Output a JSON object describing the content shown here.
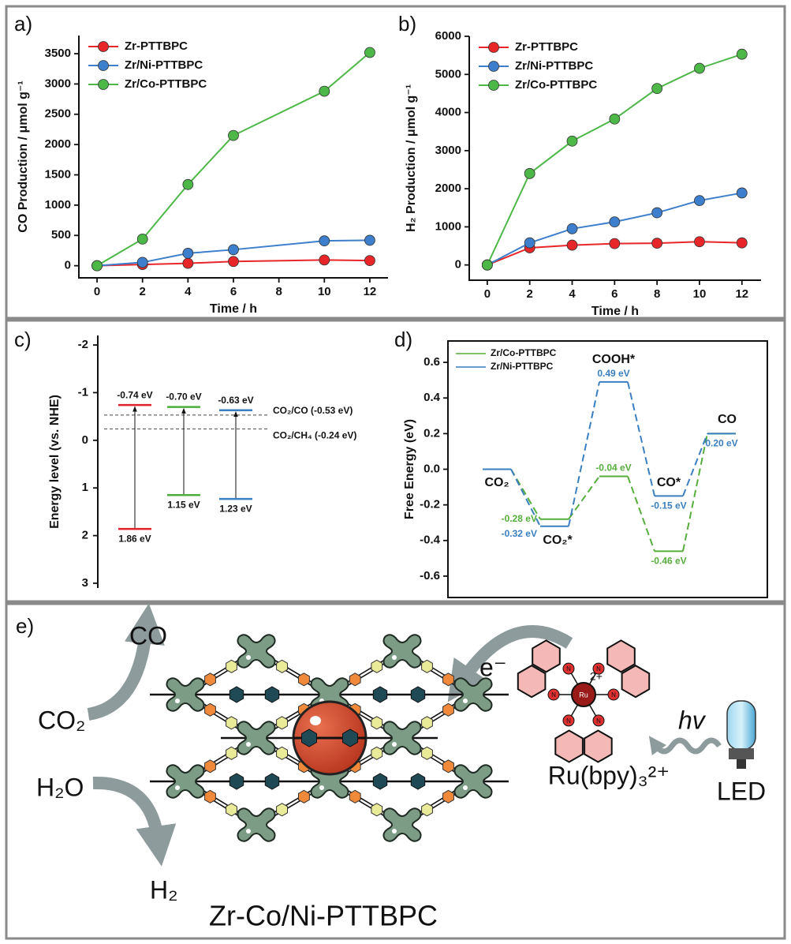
{
  "chart_data": [
    {
      "type": "line",
      "panel_label": "a)",
      "xlabel": "Time / h",
      "ylabel": "CO Production / μmol g⁻¹",
      "x": [
        0,
        2,
        4,
        6,
        10,
        12
      ],
      "xlim": [
        -0.8,
        12.8
      ],
      "xticks": [
        0,
        2,
        4,
        6,
        8,
        10,
        12
      ],
      "ylim": [
        -200,
        3800
      ],
      "yticks": [
        0,
        500,
        1000,
        1500,
        2000,
        2500,
        3000,
        3500
      ],
      "legend": "upper left",
      "series": [
        {
          "name": "Zr-PTTBPC",
          "color": "#e8262a",
          "values": [
            0,
            20,
            40,
            70,
            95,
            85
          ]
        },
        {
          "name": "Zr/Ni-PTTBPC",
          "color": "#3d7fcc",
          "values": [
            0,
            55,
            205,
            265,
            410,
            420
          ]
        },
        {
          "name": "Zr/Co-PTTBPC",
          "color": "#4db848",
          "values": [
            0,
            440,
            1340,
            2150,
            2880,
            3520
          ]
        }
      ]
    },
    {
      "type": "line",
      "panel_label": "b)",
      "xlabel": "Time / h",
      "ylabel": "H₂ Production / μmol g⁻¹",
      "x": [
        0,
        2,
        4,
        6,
        8,
        10,
        12
      ],
      "xlim": [
        -0.85,
        12.9
      ],
      "xticks": [
        0,
        2,
        4,
        6,
        8,
        10,
        12
      ],
      "ylim": [
        -400,
        6000
      ],
      "yticks": [
        0,
        1000,
        2000,
        3000,
        4000,
        5000,
        6000
      ],
      "legend": "upper left",
      "series": [
        {
          "name": "Zr-PTTBPC",
          "color": "#e8262a",
          "values": [
            0,
            450,
            520,
            560,
            570,
            610,
            580
          ]
        },
        {
          "name": "Zr/Ni-PTTBPC",
          "color": "#3d7fcc",
          "values": [
            0,
            580,
            950,
            1130,
            1370,
            1690,
            1890
          ]
        },
        {
          "name": "Zr/Co-PTTBPC",
          "color": "#4db848",
          "values": [
            0,
            2400,
            3250,
            3830,
            4630,
            5160,
            5530
          ]
        }
      ]
    },
    {
      "type": "energy_levels",
      "panel_label": "c)",
      "ylabel": "Energy level (vs. NHE)",
      "ylim": [
        -2.2,
        3.1
      ],
      "y_inverted": true,
      "yticks": [
        -2,
        -1,
        0,
        1,
        2,
        3
      ],
      "series": [
        {
          "color": "#e0202a",
          "values": [
            -0.74,
            1.86
          ],
          "value_labels": [
            "-0.74 eV",
            "1.86 eV"
          ]
        },
        {
          "color": "#4caf3c",
          "values": [
            -0.7,
            1.15
          ],
          "value_labels": [
            "-0.70 eV",
            "1.15 eV"
          ]
        },
        {
          "color": "#3a7fc0",
          "values": [
            -0.63,
            1.23
          ],
          "value_labels": [
            "-0.63 eV",
            "1.23 eV"
          ]
        }
      ],
      "reference_lines": [
        {
          "value": -0.53,
          "label": "CO₂/CO (-0.53 eV)"
        },
        {
          "value": -0.24,
          "label": "CO₂/CH₄ (-0.24 eV)"
        }
      ]
    },
    {
      "type": "free_energy",
      "panel_label": "d)",
      "ylabel": "Free Energy (eV)",
      "categories": [
        "CO₂",
        "CO₂*",
        "COOH*",
        "CO*",
        "CO"
      ],
      "ylim": [
        -0.72,
        0.72
      ],
      "yticks": [
        0.6,
        0.4,
        0.2,
        {
          "value": 0,
          "label": "0.0"
        },
        -0.2,
        -0.4,
        -0.6
      ],
      "legend": "upper left",
      "series": [
        {
          "name": "Zr/Co-PTTBPC",
          "color": "#56ae3c",
          "values": [
            0,
            -0.28,
            -0.04,
            -0.46,
            0.2
          ],
          "value_labels": [
            null,
            "-0.28 eV",
            "-0.04 eV",
            "-0.46 eV",
            null
          ]
        },
        {
          "name": "Zr/Ni-PTTBPC",
          "color": "#3a7fc0",
          "values": [
            0,
            -0.32,
            0.49,
            -0.15,
            0.2
          ],
          "value_labels": [
            null,
            "-0.32 eV",
            "0.49 eV",
            "-0.15 eV",
            "0.20 eV"
          ]
        }
      ]
    }
  ],
  "schematic": {
    "panel_label": "e)",
    "product_co": "CO",
    "reactant_co2": "CO₂",
    "reactant_h2o": "H₂O",
    "product_h2": "H₂",
    "framework": "Zr-Co/Ni-PTTBPC",
    "electron": "e⁻",
    "charge": "2+",
    "metal": "Ru",
    "ligand_atom": "N",
    "photosensitizer": "Ru(bpy)₃²⁺",
    "light": "hv",
    "light_source": "LED"
  }
}
